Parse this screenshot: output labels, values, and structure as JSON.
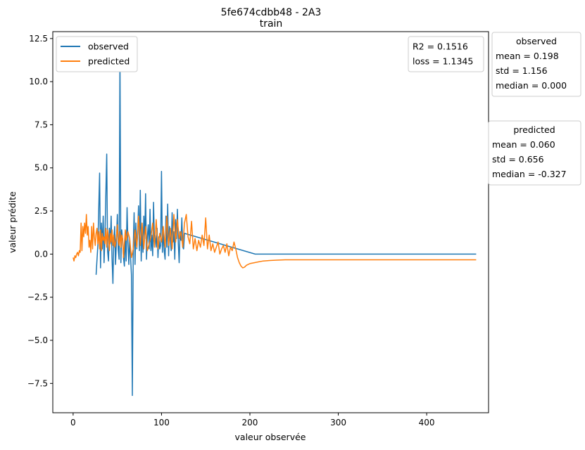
{
  "chart_data": {
    "type": "line",
    "title": "5fe674cdbb48 - 2A3",
    "subtitle": "train",
    "xlabel": "valeur observée",
    "ylabel": "valeur prédite",
    "xlim": [
      -23,
      470
    ],
    "ylim": [
      -9.2,
      12.9
    ],
    "x_ticks": [
      0,
      100,
      200,
      300,
      400
    ],
    "y_ticks": [
      -7.5,
      -5.0,
      -2.5,
      0.0,
      2.5,
      5.0,
      7.5,
      10.0,
      12.5
    ],
    "x_tick_labels": [
      "0",
      "100",
      "200",
      "300",
      "400"
    ],
    "y_tick_labels": [
      "−7.5",
      "−5.0",
      "−2.5",
      "0.0",
      "2.5",
      "5.0",
      "7.5",
      "10.0",
      "12.5"
    ],
    "grid": false,
    "legend": {
      "placement": "upper-left",
      "entries": [
        "observed",
        "predicted"
      ]
    },
    "metrics": {
      "r2_label": "R2 = 0.1516",
      "loss_label": "loss = 1.1345"
    },
    "stats_observed": {
      "title": "observed",
      "mean": "mean = 0.198",
      "std": "std = 1.156",
      "median": "median = 0.000"
    },
    "stats_predicted": {
      "title": "predicted",
      "mean": "mean = 0.060",
      "std": "std = 0.656",
      "median": "median = -0.327"
    },
    "series": [
      {
        "name": "observed",
        "color": "#1f77b4",
        "x": [
          26,
          28,
          30,
          31,
          32,
          33,
          34,
          35,
          36,
          37,
          38,
          39,
          40,
          41,
          42,
          43,
          44,
          45,
          46,
          47,
          48,
          49,
          50,
          51,
          52,
          53,
          54,
          55,
          56,
          57,
          58,
          59,
          60,
          61,
          62,
          63,
          64,
          65,
          66,
          67,
          68,
          69,
          70,
          71,
          72,
          73,
          74,
          75,
          76,
          77,
          78,
          79,
          80,
          81,
          82,
          83,
          84,
          85,
          86,
          87,
          88,
          89,
          90,
          91,
          92,
          93,
          94,
          95,
          96,
          97,
          98,
          99,
          100,
          101,
          102,
          103,
          104,
          105,
          106,
          107,
          108,
          109,
          110,
          111,
          112,
          113,
          114,
          115,
          116,
          117,
          118,
          119,
          120,
          121,
          122,
          123,
          124,
          125,
          126,
          206,
          456
        ],
        "y": [
          -1.2,
          0.5,
          4.7,
          -0.8,
          1.8,
          0.3,
          2.2,
          -0.5,
          1.0,
          3.4,
          5.8,
          0.2,
          -0.4,
          1.5,
          0.6,
          2.2,
          -0.2,
          -1.7,
          0.8,
          1.6,
          -0.6,
          0.8,
          2.3,
          0.3,
          -0.3,
          11.5,
          -0.5,
          1.4,
          0.8,
          -0.2,
          -0.7,
          1.2,
          -0.4,
          2.7,
          0.7,
          -0.6,
          0.9,
          -0.2,
          -1.2,
          -8.2,
          0.4,
          2.4,
          -0.6,
          1.8,
          0.3,
          1.2,
          2.8,
          0.2,
          3.7,
          -0.4,
          1.5,
          0.1,
          2.2,
          0.9,
          3.5,
          -0.3,
          1.0,
          1.7,
          0.3,
          2.6,
          0.2,
          1.1,
          -0.1,
          3.0,
          0.6,
          1.1,
          0.4,
          1.5,
          -0.2,
          1.0,
          0.3,
          0.5,
          4.8,
          0.1,
          1.4,
          0.2,
          -0.3,
          2.2,
          0.4,
          2.9,
          -0.1,
          1.6,
          0.8,
          0.2,
          2.4,
          0.7,
          1.3,
          -0.3,
          2.0,
          0.9,
          2.6,
          0.6,
          -0.5,
          1.3,
          0.8,
          2.1,
          0.4,
          0.3,
          1.2,
          0.0,
          0.0
        ]
      },
      {
        "name": "predicted",
        "color": "#ff7f0e",
        "x": [
          0,
          1,
          2,
          3,
          4,
          5,
          6,
          7,
          8,
          9,
          10,
          11,
          12,
          13,
          14,
          15,
          16,
          17,
          18,
          19,
          20,
          21,
          22,
          23,
          24,
          25,
          26,
          27,
          28,
          29,
          30,
          31,
          32,
          33,
          34,
          35,
          36,
          37,
          38,
          39,
          40,
          41,
          42,
          43,
          44,
          45,
          46,
          47,
          48,
          49,
          50,
          51,
          52,
          53,
          54,
          55,
          56,
          57,
          58,
          59,
          60,
          62,
          64,
          66,
          68,
          70,
          72,
          74,
          76,
          78,
          80,
          82,
          84,
          86,
          88,
          90,
          92,
          94,
          96,
          98,
          100,
          102,
          104,
          106,
          108,
          110,
          112,
          114,
          116,
          118,
          120,
          122,
          124,
          126,
          128,
          130,
          132,
          134,
          136,
          138,
          140,
          142,
          144,
          146,
          148,
          150,
          152,
          154,
          156,
          158,
          160,
          162,
          164,
          166,
          168,
          170,
          172,
          174,
          176,
          178,
          180,
          182,
          184,
          186,
          188,
          190,
          192,
          194,
          196,
          198,
          200,
          205,
          210,
          215,
          220,
          230,
          240,
          260,
          300,
          350,
          400,
          456
        ],
        "y": [
          -0.2,
          -0.4,
          -0.1,
          -0.2,
          0.0,
          0.1,
          -0.1,
          0.2,
          0.1,
          1.8,
          0.2,
          1.6,
          1.0,
          1.8,
          1.2,
          2.3,
          1.1,
          1.6,
          0.4,
          0.8,
          0.1,
          1.6,
          0.3,
          1.8,
          1.0,
          0.5,
          1.2,
          1.5,
          0.6,
          1.3,
          0.3,
          1.4,
          0.2,
          1.2,
          0.8,
          1.0,
          0.6,
          1.5,
          0.4,
          1.4,
          0.9,
          0.2,
          1.2,
          0.7,
          1.4,
          0.5,
          1.1,
          0.4,
          0.6,
          1.0,
          1.7,
          0.8,
          0.5,
          1.3,
          0.4,
          1.1,
          0.9,
          -0.2,
          0.6,
          1.4,
          0.8,
          1.3,
          0.9,
          -0.2,
          0.3,
          1.4,
          0.4,
          2.2,
          0.5,
          1.8,
          0.3,
          1.6,
          0.2,
          0.6,
          1.0,
          1.8,
          0.4,
          2.0,
          0.3,
          1.2,
          0.7,
          1.6,
          0.4,
          2.2,
          0.5,
          1.5,
          0.3,
          2.3,
          0.7,
          2.0,
          0.9,
          1.3,
          0.4,
          1.8,
          2.3,
          1.0,
          0.6,
          1.9,
          0.3,
          0.9,
          0.2,
          0.8,
          0.4,
          1.1,
          0.5,
          2.1,
          0.3,
          1.1,
          0.2,
          0.6,
          0.1,
          0.4,
          0.7,
          0.0,
          0.3,
          0.5,
          0.1,
          0.6,
          -0.1,
          0.4,
          0.2,
          0.7,
          0.3,
          -0.2,
          -0.5,
          -0.7,
          -0.8,
          -0.75,
          -0.65,
          -0.6,
          -0.55,
          -0.5,
          -0.45,
          -0.4,
          -0.38,
          -0.35,
          -0.33,
          -0.33,
          -0.33,
          -0.33,
          -0.33,
          -0.33
        ]
      }
    ]
  }
}
